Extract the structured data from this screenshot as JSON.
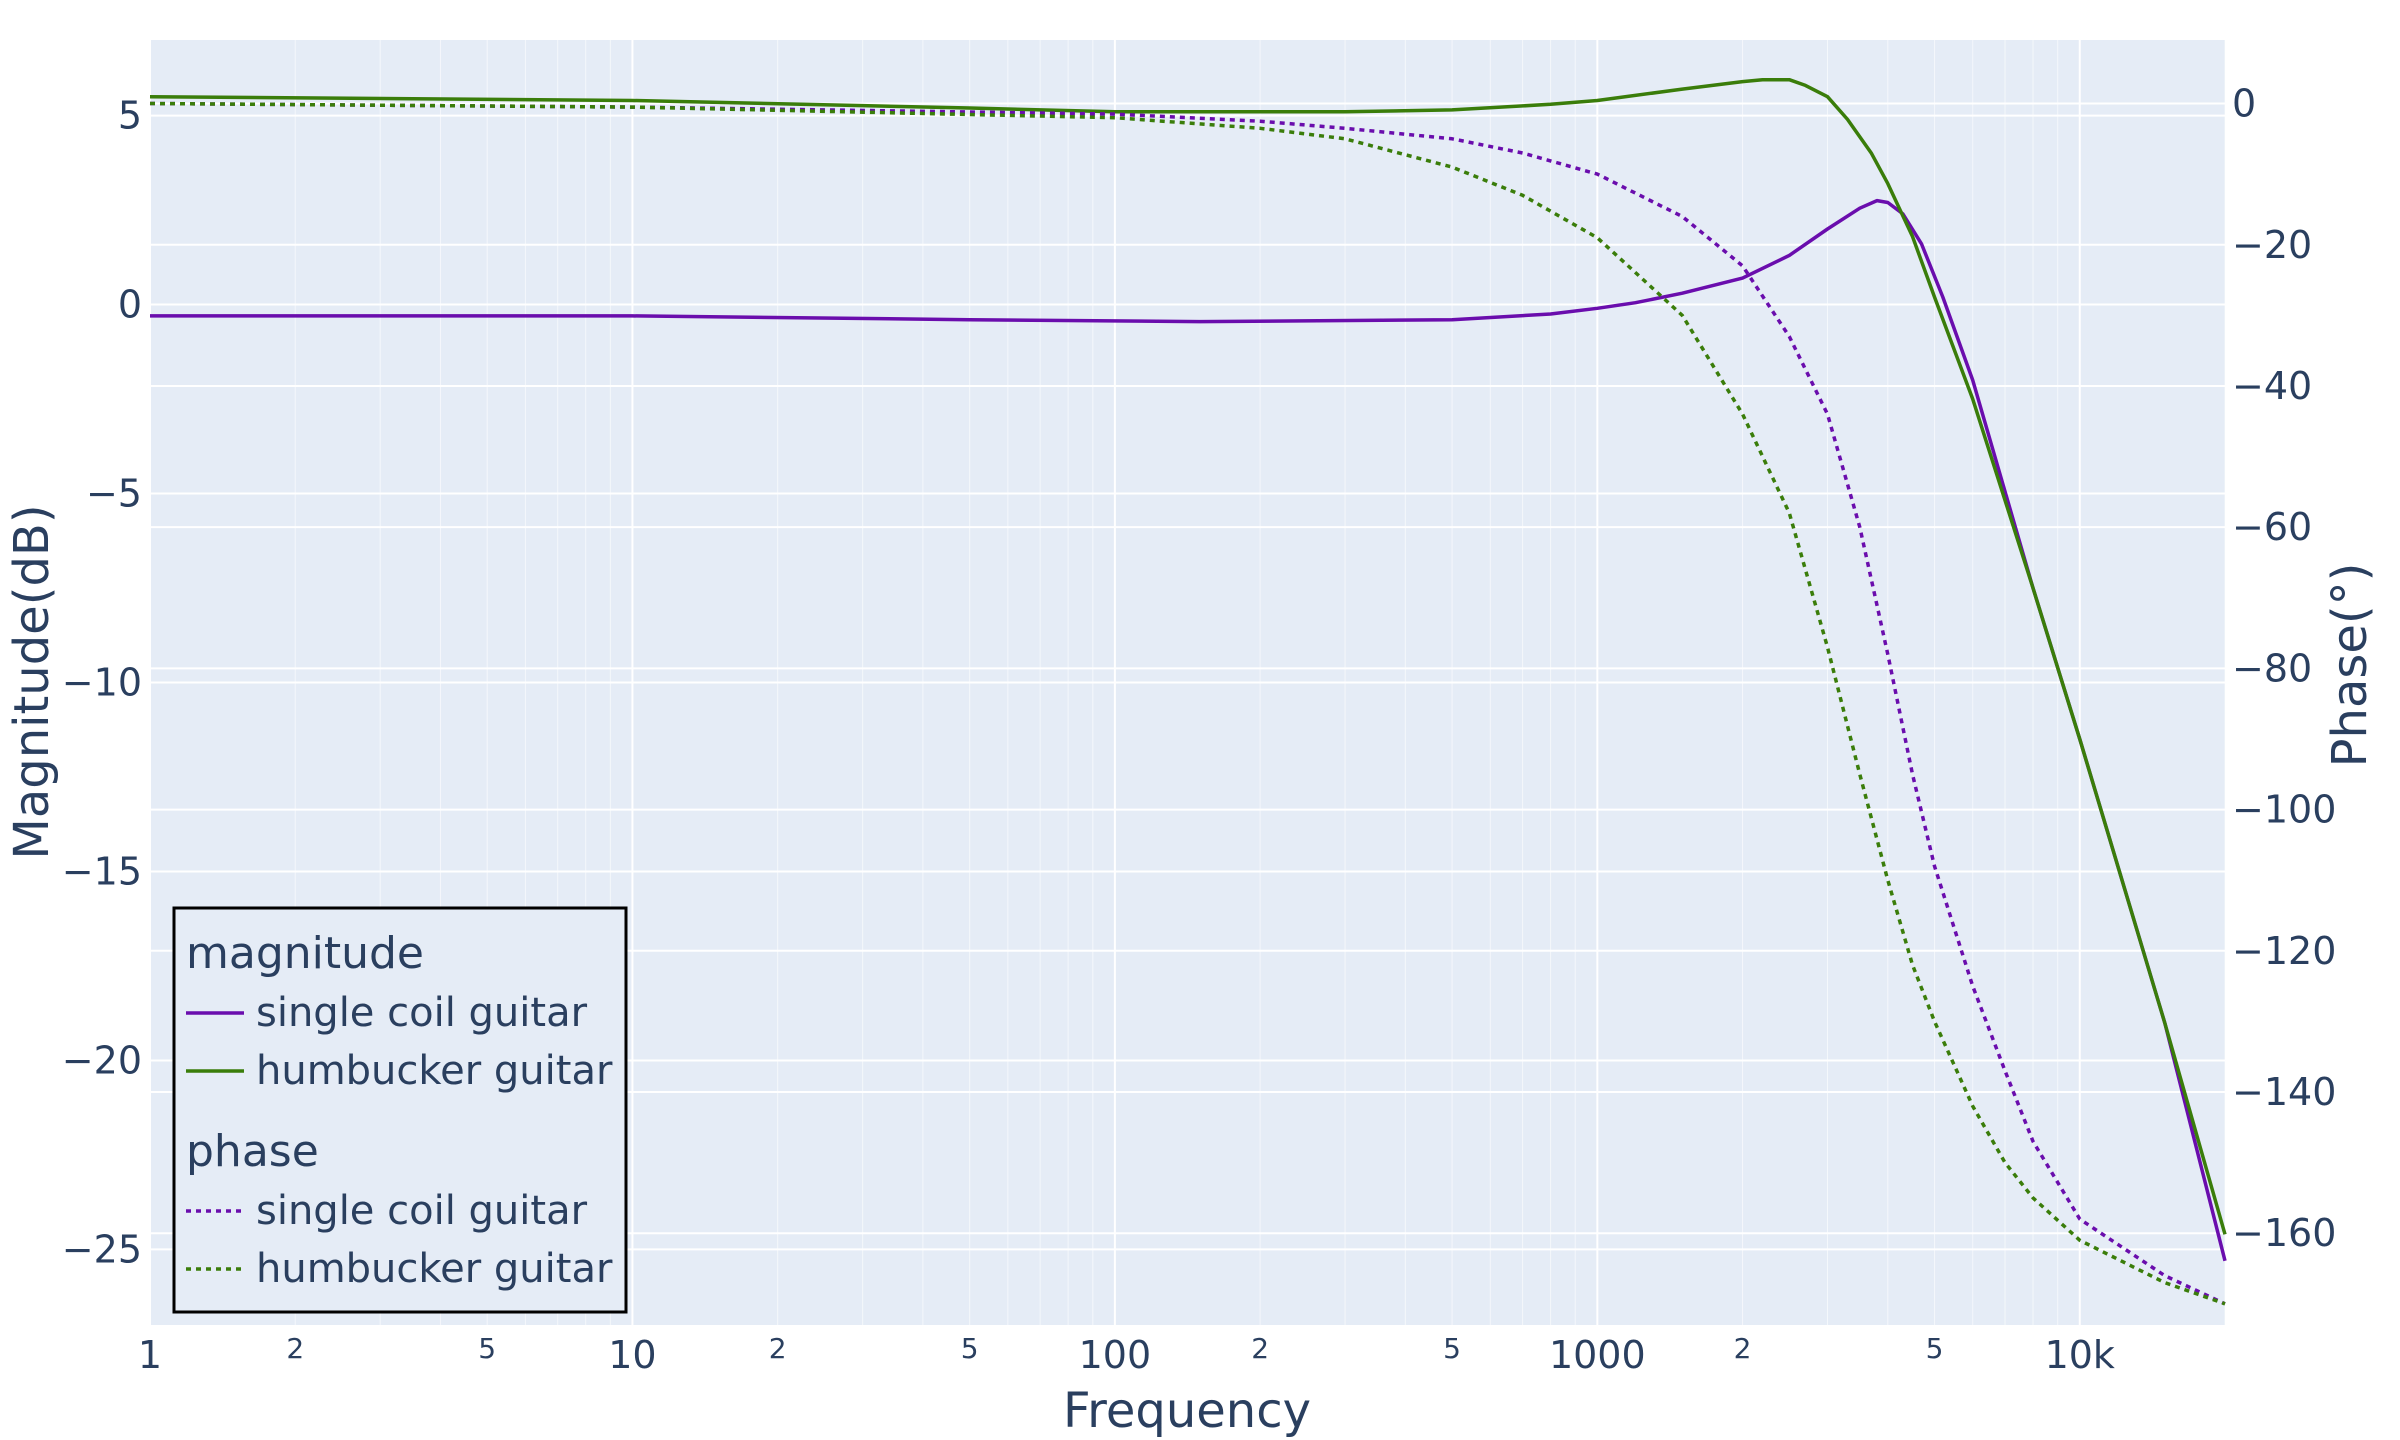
{
  "chart_data": {
    "type": "line",
    "xlabel": "Frequency",
    "ylabel": "Magnitude(dB)",
    "y2label": "Phase(°)",
    "x_scale": "log",
    "xlim": [
      1,
      20000
    ],
    "ylim": [
      -27,
      7
    ],
    "y2lim": [
      -173,
      9
    ],
    "x_ticks": [
      "1",
      "10",
      "100",
      "1000",
      "10k"
    ],
    "x_minor_ticks": [
      "2",
      "5"
    ],
    "y_ticks": [
      "5",
      "0",
      "−5",
      "−10",
      "−15",
      "−20",
      "−25"
    ],
    "y2_ticks": [
      "0",
      "−20",
      "−40",
      "−60",
      "−80",
      "−100",
      "−120",
      "−140",
      "−160"
    ],
    "grid": true,
    "legend_position": "bottom-left",
    "colors": {
      "single_coil": "#6a0dad",
      "humbucker": "#3a7d0a",
      "plot_bg": "#e5ecf6",
      "text": "#2a3f5f"
    },
    "legend_groups": [
      {
        "title": "magnitude",
        "entries": [
          "single coil guitar",
          "humbucker guitar"
        ]
      },
      {
        "title": "phase",
        "entries": [
          "single coil guitar",
          "humbucker guitar"
        ]
      }
    ],
    "series": [
      {
        "name": "single coil guitar",
        "group": "magnitude",
        "axis": "y",
        "dash": "solid",
        "color": "#6a0dad",
        "x": [
          1,
          10,
          50,
          150,
          500,
          800,
          1000,
          1200,
          1500,
          2000,
          2500,
          3000,
          3500,
          3800,
          4000,
          4300,
          4700,
          5200,
          6000,
          8000,
          10000,
          15000,
          20000
        ],
        "y": [
          -0.3,
          -0.3,
          -0.4,
          -0.45,
          -0.4,
          -0.25,
          -0.1,
          0.05,
          0.3,
          0.7,
          1.3,
          2.0,
          2.55,
          2.75,
          2.7,
          2.4,
          1.6,
          0.2,
          -2.0,
          -7.5,
          -11.5,
          -19,
          -25.3
        ]
      },
      {
        "name": "humbucker guitar",
        "group": "magnitude",
        "axis": "y",
        "dash": "solid",
        "color": "#3a7d0a",
        "x": [
          1,
          10,
          50,
          100,
          300,
          500,
          800,
          1000,
          1500,
          2000,
          2200,
          2500,
          2700,
          3000,
          3300,
          3700,
          4000,
          4500,
          5000,
          6000,
          8000,
          10000,
          15000,
          20000
        ],
        "y": [
          5.5,
          5.4,
          5.2,
          5.1,
          5.1,
          5.15,
          5.3,
          5.4,
          5.7,
          5.9,
          5.95,
          5.95,
          5.8,
          5.5,
          4.9,
          4.0,
          3.2,
          1.8,
          0.2,
          -2.5,
          -7.5,
          -11.5,
          -19,
          -24.6
        ]
      },
      {
        "name": "single coil guitar",
        "group": "phase",
        "axis": "y2",
        "dash": "dot",
        "color": "#6a0dad",
        "x": [
          1,
          10,
          100,
          200,
          300,
          500,
          700,
          1000,
          1500,
          2000,
          2500,
          3000,
          3500,
          4000,
          4500,
          5000,
          6000,
          7000,
          8000,
          10000,
          15000,
          20000
        ],
        "y": [
          0,
          -0.5,
          -1.5,
          -2.5,
          -3.5,
          -5,
          -7,
          -10,
          -16,
          -23,
          -33,
          -44,
          -60,
          -78,
          -95,
          -108,
          -125,
          -137,
          -147,
          -158,
          -166,
          -170
        ]
      },
      {
        "name": "humbucker guitar",
        "group": "phase",
        "axis": "y2",
        "dash": "dot",
        "color": "#3a7d0a",
        "x": [
          1,
          10,
          100,
          200,
          300,
          500,
          700,
          1000,
          1500,
          2000,
          2500,
          3000,
          3500,
          4000,
          4500,
          5000,
          6000,
          7000,
          8000,
          10000,
          15000,
          20000
        ],
        "y": [
          0,
          -0.5,
          -2,
          -3.5,
          -5,
          -9,
          -13,
          -19,
          -30,
          -44,
          -58,
          -77,
          -95,
          -110,
          -122,
          -130,
          -142,
          -150,
          -155,
          -161,
          -167,
          -170
        ]
      }
    ]
  }
}
